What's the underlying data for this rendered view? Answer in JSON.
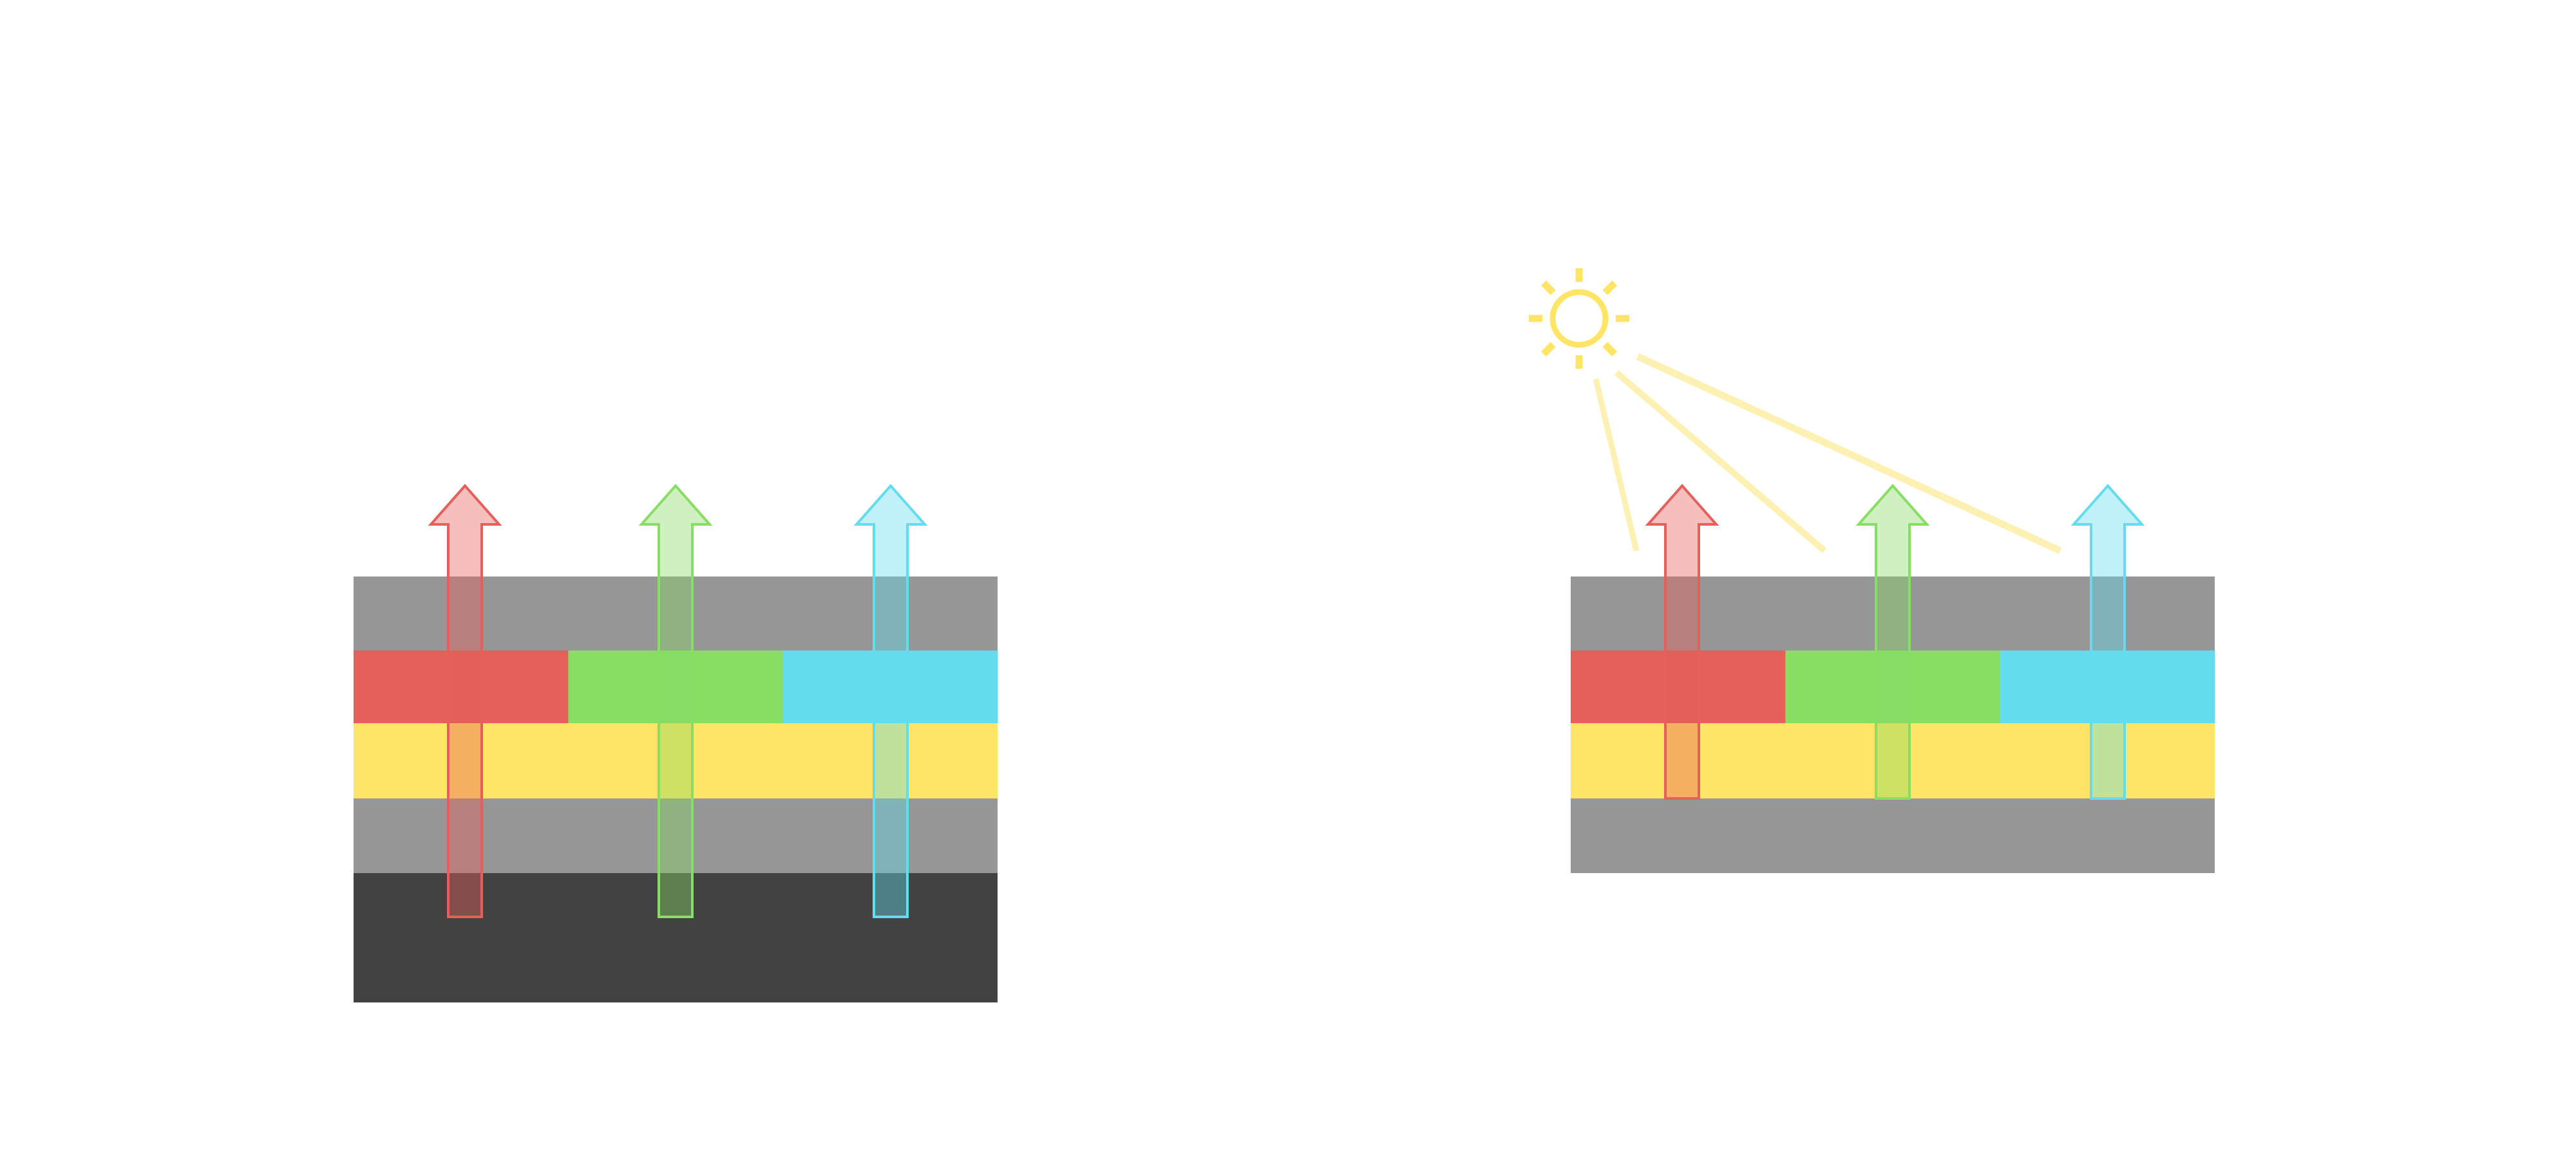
{
  "colors": {
    "background": "#ffffff",
    "gray_layer": "#969696",
    "dark_layer": "#424242",
    "yellow_layer": "#fee566",
    "red": "#e5605b",
    "green": "#88dd63",
    "blue": "#63dcee",
    "sun": "#fee566",
    "sun_beam": "#fdf0b3"
  },
  "diagrams": [
    {
      "name": "stack-with-backlight",
      "layers": [
        "gray",
        "color-filter",
        "yellow",
        "gray",
        "dark"
      ],
      "arrows": [
        "red",
        "green",
        "blue"
      ],
      "has_sun": false
    },
    {
      "name": "stack-with-sunlight",
      "layers": [
        "gray",
        "color-filter",
        "yellow",
        "gray"
      ],
      "arrows": [
        "red",
        "green",
        "blue"
      ],
      "has_sun": true
    }
  ]
}
